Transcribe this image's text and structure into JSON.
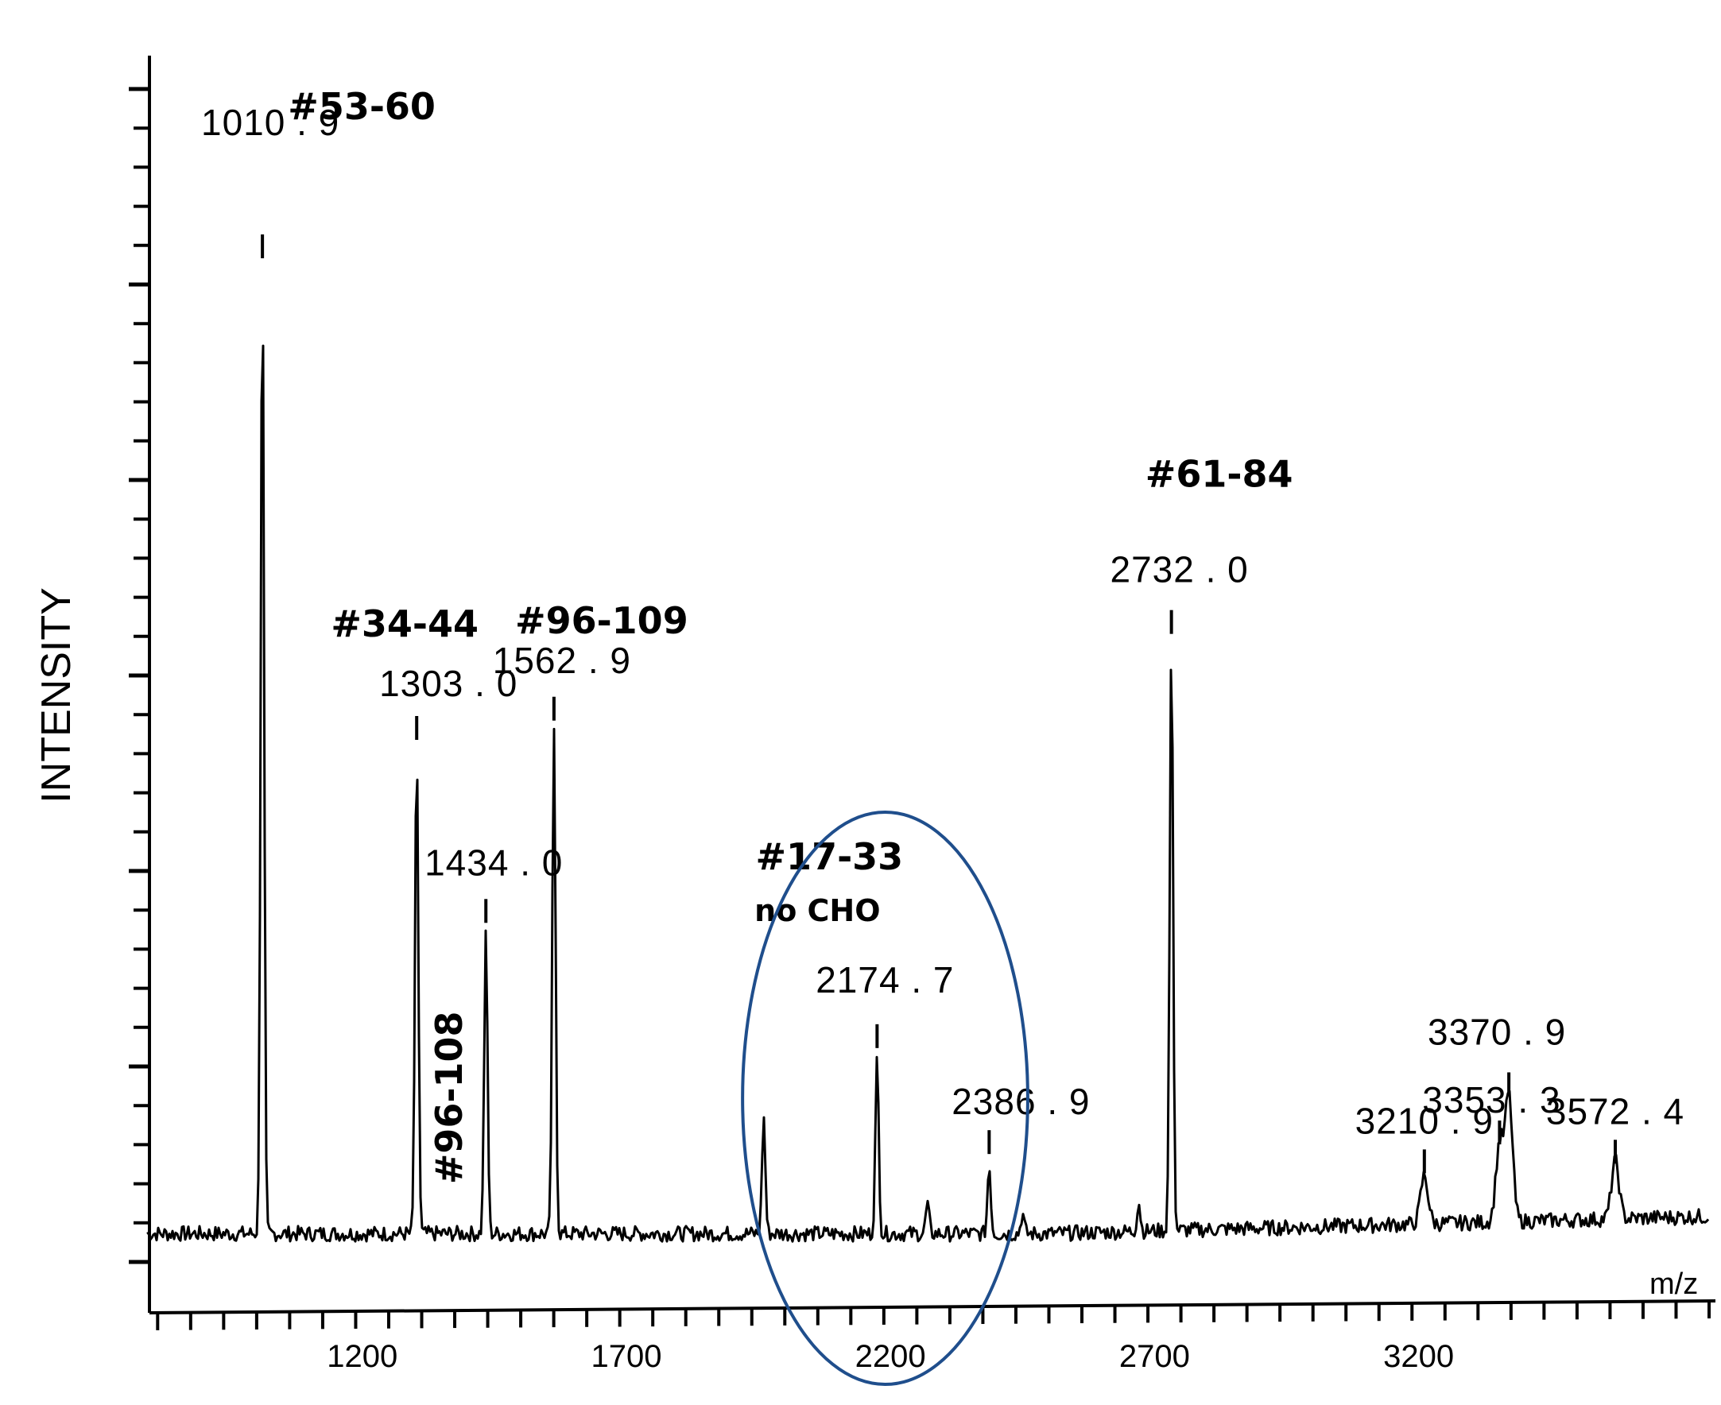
{
  "chart_data": {
    "type": "line",
    "title": "",
    "xlabel": "m/z",
    "ylabel": "INTENSITY",
    "xlim": [
      800,
      3750
    ],
    "x_ticks": [
      1200,
      1700,
      2200,
      2700,
      3200
    ],
    "ylim": [
      0,
      100
    ],
    "grid": false,
    "legend": "none",
    "line_color": "#000000",
    "highlight_color": "#1f4e8c",
    "peaks": [
      {
        "mz": 1010.9,
        "intensity": 100,
        "label": "1010 . 9",
        "fragment": "#53-60"
      },
      {
        "mz": 1303.0,
        "intensity": 50,
        "label": "1303 . 0",
        "fragment": "#34-44"
      },
      {
        "mz": 1434.0,
        "intensity": 31,
        "label": "1434 . 0",
        "fragment": "#96-108"
      },
      {
        "mz": 1562.9,
        "intensity": 52,
        "label": "1562 . 9",
        "fragment": "#96-109"
      },
      {
        "mz": 2174.7,
        "intensity": 18,
        "label": "2174 . 7",
        "fragment": "#17-33",
        "fragment_note": "no CHO"
      },
      {
        "mz": 2386.9,
        "intensity": 7,
        "label": "2386 . 9"
      },
      {
        "mz": 2732.0,
        "intensity": 61,
        "label": "2732 . 0",
        "fragment": "#61-84"
      },
      {
        "mz": 3210.9,
        "intensity": 5,
        "label": "3210 . 9"
      },
      {
        "mz": 3353.3,
        "intensity": 8,
        "label": "3353 . 3"
      },
      {
        "mz": 3370.9,
        "intensity": 13,
        "label": "3370 . 9"
      },
      {
        "mz": 3572.4,
        "intensity": 6,
        "label": "3572 . 4"
      }
    ],
    "minor_peaks": [
      {
        "mz": 1960,
        "intensity": 12
      },
      {
        "mz": 2450,
        "intensity": 2
      },
      {
        "mz": 2270,
        "intensity": 3
      },
      {
        "mz": 2670,
        "intensity": 3
      }
    ],
    "highlight": {
      "type": "ellipse",
      "mz_range": [
        1920,
        2460
      ]
    }
  }
}
